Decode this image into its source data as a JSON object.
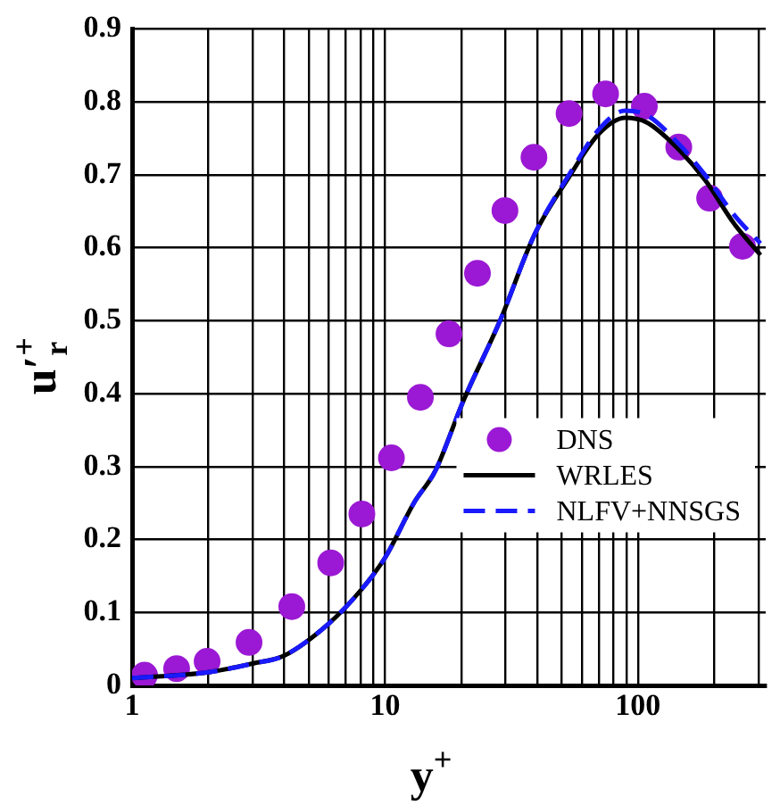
{
  "chart_data": {
    "type": "line",
    "xlabel": "y$^{+}$",
    "ylabel": "u′$_{r}$$^{+}$",
    "log": "x",
    "grid": true,
    "legend": "right",
    "xlim": [
      1,
      320
    ],
    "xticks": [
      1,
      {
        "value": 2,
        "label": null
      },
      {
        "value": 3,
        "label": null
      },
      {
        "value": 4,
        "label": null
      },
      {
        "value": 5,
        "label": null
      },
      {
        "value": 6,
        "label": null
      },
      {
        "value": 7,
        "label": null
      },
      {
        "value": 8,
        "label": null
      },
      {
        "value": 9,
        "label": null
      },
      10,
      {
        "value": 20,
        "label": null
      },
      {
        "value": 30,
        "label": null
      },
      {
        "value": 40,
        "label": null
      },
      {
        "value": 50,
        "label": null
      },
      {
        "value": 60,
        "label": null
      },
      {
        "value": 70,
        "label": null
      },
      {
        "value": 80,
        "label": null
      },
      {
        "value": 90,
        "label": null
      },
      100,
      {
        "value": 200,
        "label": null
      },
      {
        "value": 300,
        "label": null
      }
    ],
    "ylim": [
      0,
      0.9
    ],
    "yticks": [
      0,
      0.1,
      0.2,
      0.3,
      0.4,
      0.5,
      0.6,
      0.7,
      0.8,
      0.9
    ],
    "series": [
      {
        "name": "DNS",
        "type": "scatter",
        "marker": "circle",
        "color": "#9b19d4",
        "x": [
          1.12,
          1.5,
          1.98,
          2.9,
          4.28,
          6.1,
          8.1,
          10.6,
          13.8,
          17.9,
          23.2,
          29.8,
          38.8,
          53.4,
          74.5,
          106,
          145,
          192,
          259
        ],
        "values": [
          0.014,
          0.023,
          0.033,
          0.059,
          0.108,
          0.168,
          0.235,
          0.312,
          0.395,
          0.482,
          0.565,
          0.651,
          0.724,
          0.784,
          0.811,
          0.794,
          0.738,
          0.668,
          0.602
        ]
      },
      {
        "name": "WRLES",
        "marker": "none",
        "line_style": "solid",
        "color": "#000000",
        "x": [
          1,
          2,
          3,
          4,
          6,
          8,
          10,
          13,
          15.8,
          20.4,
          28.5,
          39,
          53.4,
          70,
          89,
          108,
          140,
          184,
          240,
          305
        ],
        "values": [
          0.01,
          0.018,
          0.03,
          0.041,
          0.085,
          0.13,
          0.175,
          0.25,
          0.294,
          0.39,
          0.5,
          0.618,
          0.697,
          0.756,
          0.778,
          0.772,
          0.74,
          0.693,
          0.633,
          0.59
        ]
      },
      {
        "name": "NLFV+NNSGS",
        "marker": "none",
        "line_style": "dashed",
        "color": "#1a1aff",
        "x": [
          1,
          2,
          3,
          4,
          6,
          8,
          10,
          13,
          15.8,
          20.4,
          28.5,
          39,
          53.4,
          70,
          89,
          108,
          140,
          184,
          240,
          305
        ],
        "values": [
          0.01,
          0.018,
          0.03,
          0.041,
          0.085,
          0.13,
          0.175,
          0.25,
          0.294,
          0.39,
          0.5,
          0.618,
          0.7,
          0.762,
          0.788,
          0.782,
          0.748,
          0.7,
          0.645,
          0.606
        ]
      }
    ]
  }
}
